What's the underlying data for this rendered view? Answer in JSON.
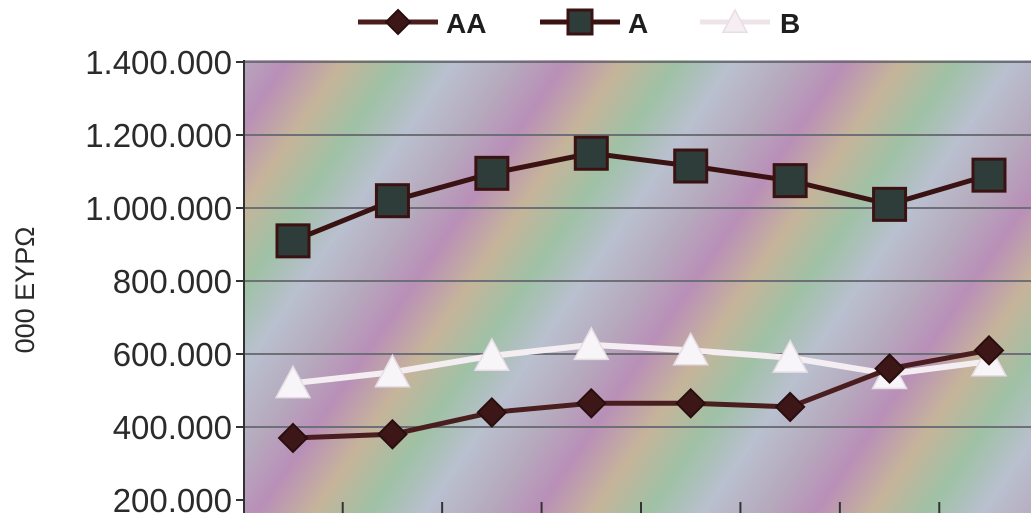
{
  "chart_data": {
    "type": "line",
    "title": "",
    "xlabel": "",
    "ylabel": "000 ΕΥΡΩ",
    "ylim": [
      200000,
      1400000
    ],
    "y_ticks": [
      "200.000",
      "400.000",
      "600.000",
      "800.000",
      "1.000.000",
      "1.200.000",
      "1.400.000"
    ],
    "y_tick_values": [
      200000,
      400000,
      600000,
      800000,
      1000000,
      1200000,
      1400000
    ],
    "x": [
      1,
      2,
      3,
      4,
      5,
      6,
      7,
      8
    ],
    "grid": true,
    "legend_position": "top",
    "series": [
      {
        "name": "AA",
        "marker": "diamond",
        "color": "#4a1e1e",
        "values": [
          370000,
          380000,
          440000,
          465000,
          465000,
          455000,
          560000,
          610000
        ]
      },
      {
        "name": "A",
        "marker": "square",
        "color": "#3a1212",
        "marker_fill": "#2f3d3a",
        "values": [
          910000,
          1020000,
          1095000,
          1150000,
          1115000,
          1075000,
          1010000,
          1090000
        ]
      },
      {
        "name": "B",
        "marker": "triangle",
        "color": "#f4eef2",
        "values": [
          520000,
          550000,
          595000,
          625000,
          610000,
          590000,
          545000,
          580000
        ]
      }
    ]
  }
}
